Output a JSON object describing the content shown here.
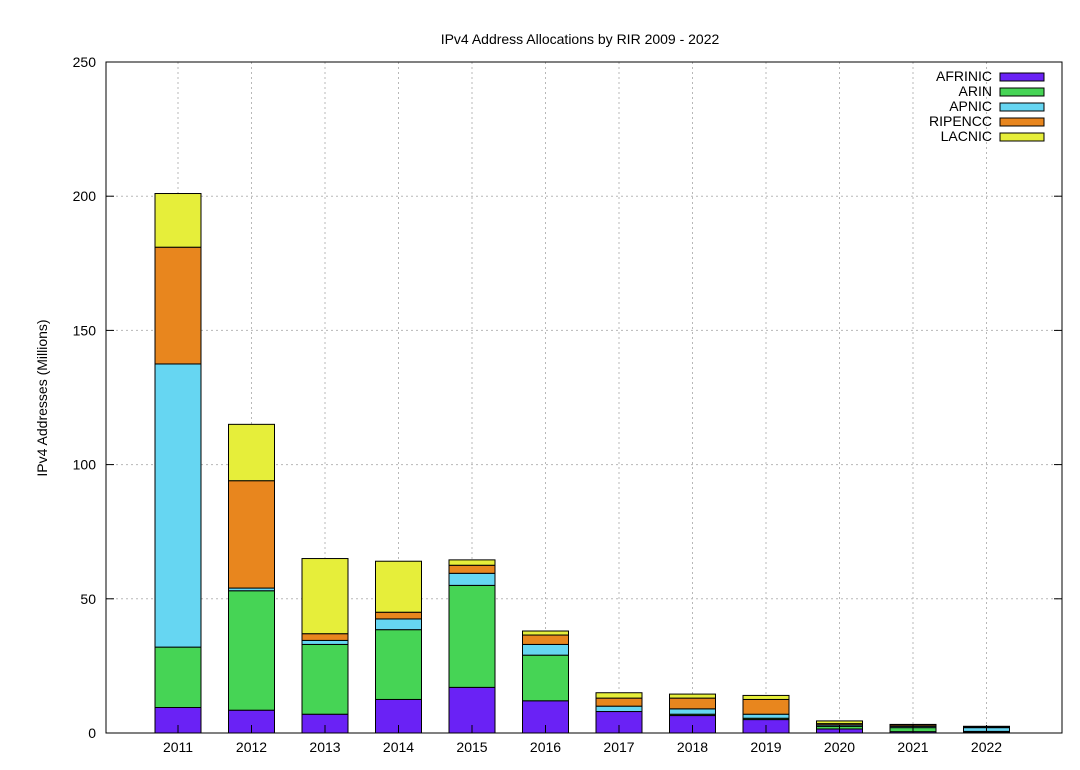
{
  "chart_data": {
    "type": "bar",
    "stacked": true,
    "title": "IPv4 Address Allocations by RIR 2009 - 2022",
    "xlabel": "",
    "ylabel": "IPv4 Addresses (Millions)",
    "ylim": [
      0,
      250
    ],
    "yticks": [
      0,
      50,
      100,
      150,
      200,
      250
    ],
    "grid": true,
    "legend_position": "top-right",
    "categories": [
      "2011",
      "2012",
      "2013",
      "2014",
      "2015",
      "2016",
      "2017",
      "2018",
      "2019",
      "2020",
      "2021",
      "2022"
    ],
    "series": [
      {
        "name": "AFRINIC",
        "color": "#6a22f5",
        "values": [
          9.5,
          8.5,
          7,
          12.5,
          17,
          12,
          8,
          6.5,
          5,
          1.5,
          0.5,
          0.3
        ]
      },
      {
        "name": "ARIN",
        "color": "#46d455",
        "values": [
          22.5,
          44.5,
          26,
          26,
          38,
          17,
          0,
          0.5,
          0.5,
          1.0,
          1.5,
          0.3
        ]
      },
      {
        "name": "APNIC",
        "color": "#66d6f2",
        "values": [
          105.5,
          1,
          1.5,
          4,
          4.5,
          4,
          2,
          2,
          1.5,
          0.5,
          0.5,
          1.4
        ]
      },
      {
        "name": "RIPENCC",
        "color": "#e8861e",
        "values": [
          43.5,
          40,
          2.5,
          2.5,
          3,
          3.5,
          3,
          4,
          5.5,
          0.5,
          0.5,
          0.3
        ]
      },
      {
        "name": "LACNIC",
        "color": "#e6ee3a",
        "values": [
          20,
          21,
          28,
          19,
          2,
          1.5,
          2,
          1.5,
          1.5,
          1.0,
          0.2,
          0.2
        ]
      }
    ]
  }
}
